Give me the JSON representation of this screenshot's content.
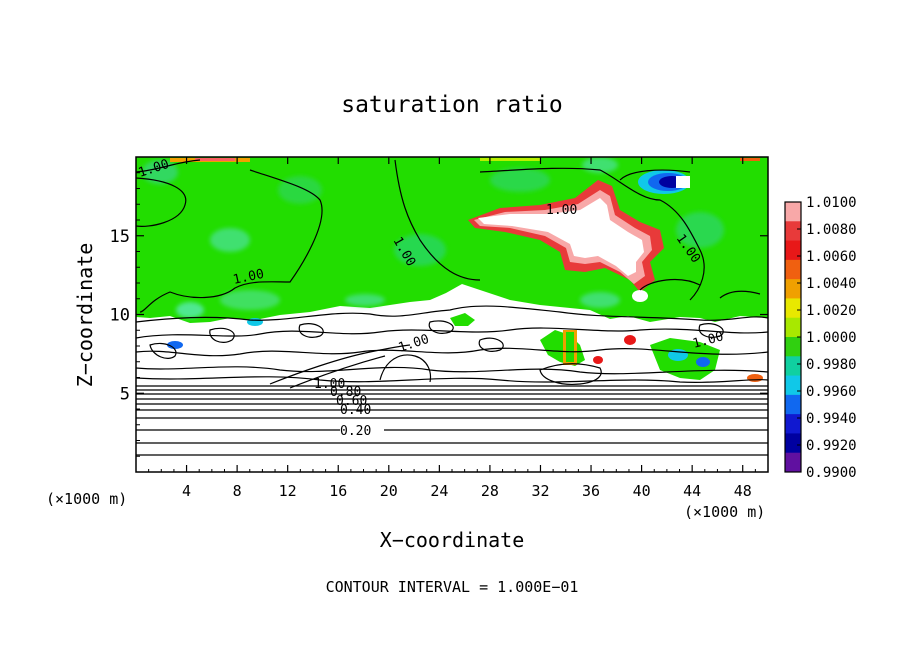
{
  "chart_data": {
    "type": "heatmap",
    "title": "saturation ratio",
    "xlabel": "X−coordinate",
    "ylabel": "Z−coordinate",
    "x_unit": "(×1000 m)",
    "y_unit": "(×1000 m)",
    "xlim": [
      0,
      50
    ],
    "ylim": [
      0,
      20
    ],
    "x_ticks": [
      "4",
      "8",
      "12",
      "16",
      "20",
      "24",
      "28",
      "32",
      "36",
      "40",
      "44",
      "48"
    ],
    "y_ticks": [
      "5",
      "10",
      "15"
    ],
    "colorbar": {
      "min": 0.99,
      "max": 1.01,
      "labels": [
        "1.0100",
        "1.0080",
        "1.0060",
        "1.0040",
        "1.0020",
        "1.0000",
        "0.9980",
        "0.9960",
        "0.9940",
        "0.9920",
        "0.9900"
      ],
      "colors": [
        "#f8a8a8",
        "#e83a3a",
        "#e81818",
        "#f06010",
        "#f0a000",
        "#e8e800",
        "#a8e800",
        "#30d010",
        "#10d0a0",
        "#10c8e8",
        "#1068f0",
        "#1018d0",
        "#0000a0",
        "#6010a0"
      ]
    },
    "contour_interval_text": "CONTOUR INTERVAL = 1.000E−01",
    "contour_labels": [
      "1.00",
      "1.00",
      "1.00",
      "1.00",
      "1.00",
      "1.00",
      "1.00",
      "1.00",
      "0.80",
      "0.60",
      "0.40",
      "0.20"
    ],
    "background_color": "#22dd00",
    "grid": false
  }
}
